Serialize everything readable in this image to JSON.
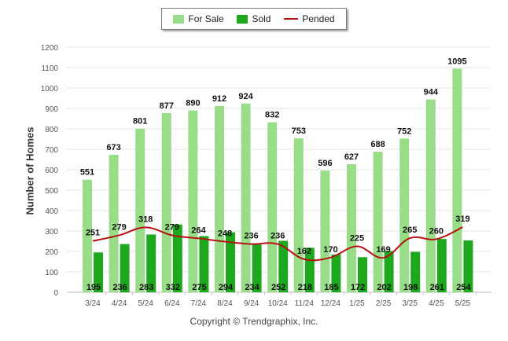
{
  "chart_data": {
    "type": "bar",
    "categories": [
      "3/24",
      "4/24",
      "5/24",
      "6/24",
      "7/24",
      "8/24",
      "9/24",
      "10/24",
      "11/24",
      "12/24",
      "1/25",
      "2/25",
      "3/25",
      "4/25",
      "5/25"
    ],
    "series": [
      {
        "name": "For Sale",
        "type": "bar",
        "color": "#99dd88",
        "values": [
          551,
          673,
          801,
          877,
          890,
          912,
          924,
          832,
          753,
          596,
          627,
          688,
          752,
          944,
          1095
        ]
      },
      {
        "name": "Sold",
        "type": "bar",
        "color": "#1ea81e",
        "values": [
          195,
          236,
          283,
          332,
          275,
          294,
          234,
          252,
          218,
          185,
          172,
          202,
          198,
          261,
          254
        ]
      },
      {
        "name": "Pended",
        "type": "line",
        "color": "#b51111",
        "values": [
          251,
          279,
          318,
          279,
          264,
          248,
          236,
          236,
          162,
          170,
          225,
          169,
          265,
          260,
          319
        ]
      }
    ],
    "ylabel": "Number of Homes",
    "ylim": [
      0,
      1200
    ],
    "yticks": [
      0,
      100,
      200,
      300,
      400,
      500,
      600,
      700,
      800,
      900,
      1000,
      1100,
      1200
    ],
    "grid": true,
    "legend_position": "top-center"
  },
  "legend": {
    "items": [
      "For Sale",
      "Sold",
      "Pended"
    ]
  },
  "copyright": "Copyright © Trendgraphix, Inc."
}
